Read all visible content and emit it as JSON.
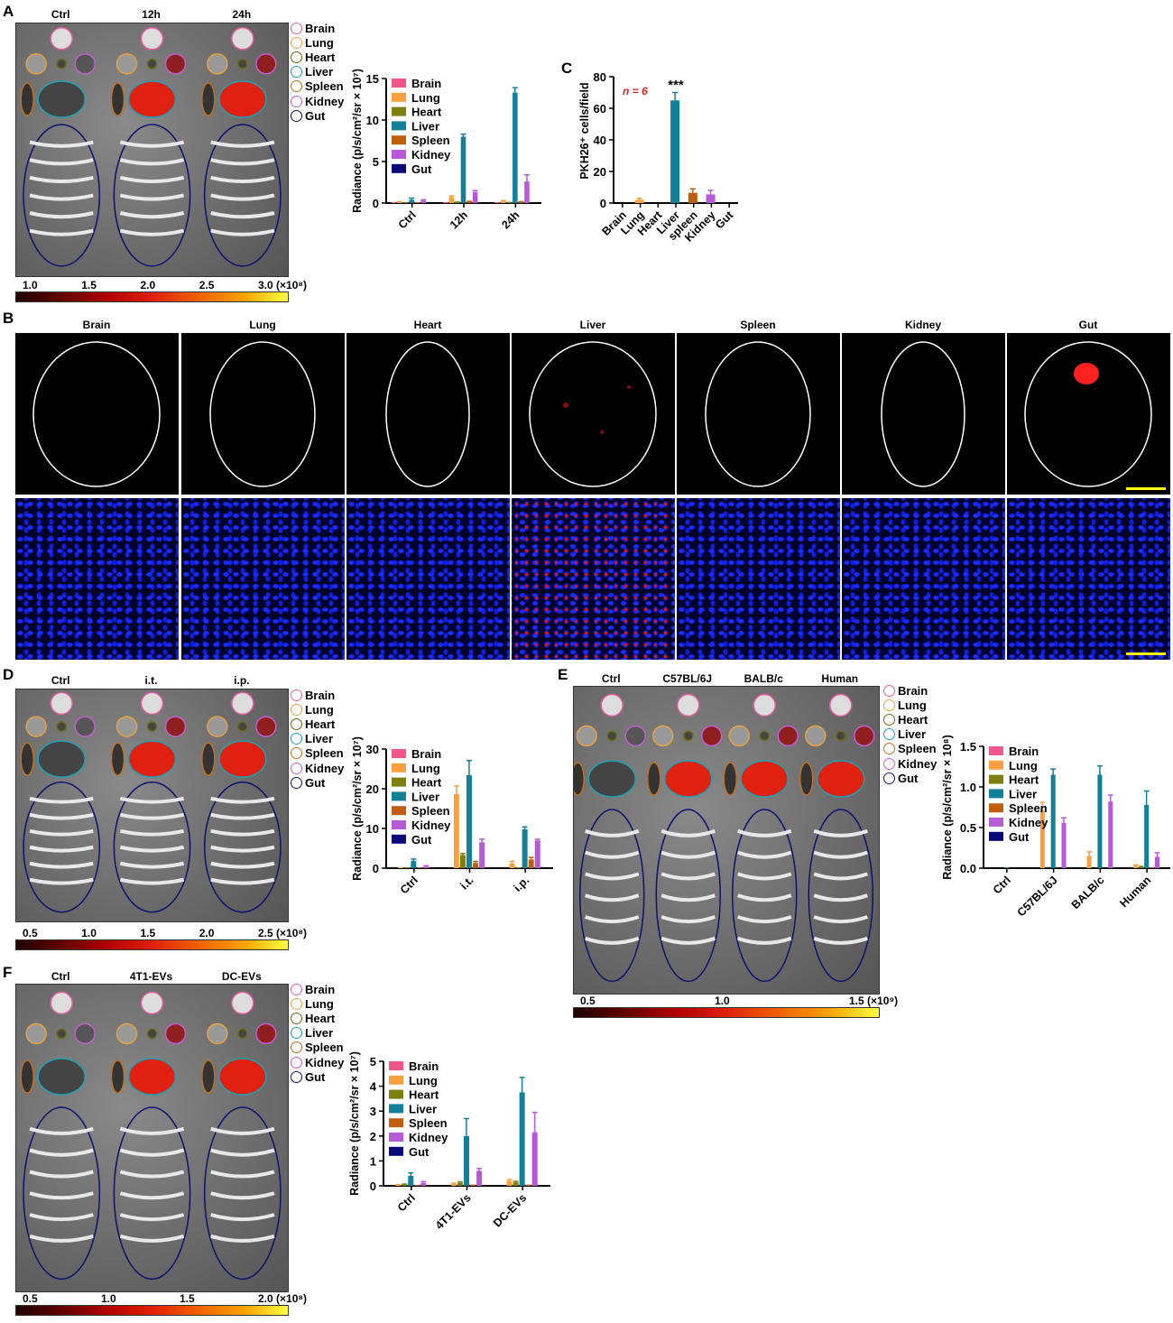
{
  "panels": {
    "A": "A",
    "B": "B",
    "C": "C",
    "D": "D",
    "E": "E",
    "F": "F"
  },
  "organs": [
    "Brain",
    "Lung",
    "Heart",
    "Liver",
    "Spleen",
    "Kidney",
    "Gut"
  ],
  "colors": {
    "Brain": "#f0568a",
    "Lung": "#f7a040",
    "Heart": "#7f7f10",
    "Liver": "#13809a",
    "Spleen": "#c05e10",
    "Kidney": "#b65ad8",
    "Gut": "#0a0a7a"
  },
  "ring_colors": {
    "Brain": "#e060a0",
    "Lung": "#e8a040",
    "Heart": "#6a6a10",
    "Liver": "#20a0b0",
    "Spleen": "#c07020",
    "Kidney": "#c060d0",
    "Gut": "#101070"
  },
  "panelA": {
    "groups": [
      "Ctrl",
      "12h",
      "24h"
    ],
    "colorbar": [
      "1.0",
      "1.5",
      "2.0",
      "2.5",
      "3.0 (×10⁸)"
    ]
  },
  "panelB": {
    "columns": [
      "Brain",
      "Lung",
      "Heart",
      "Liver",
      "Spleen",
      "Kidney",
      "Gut"
    ]
  },
  "panelD": {
    "groups": [
      "Ctrl",
      "i.t.",
      "i.p."
    ],
    "colorbar": [
      "0.5",
      "1.0",
      "1.5",
      "2.0",
      "2.5 (×10⁸)"
    ]
  },
  "panelE": {
    "groups": [
      "Ctrl",
      "C57BL/6J",
      "BALB/c",
      "Human"
    ],
    "colorbar": [
      "0.5",
      "1.0",
      "1.5 (×10⁹)"
    ]
  },
  "panelF": {
    "groups": [
      "Ctrl",
      "4T1-EVs",
      "DC-EVs"
    ],
    "colorbar": [
      "0.5",
      "1.0",
      "1.5",
      "2.0 (×10⁸)"
    ]
  },
  "chart_data": [
    {
      "id": "A",
      "type": "bar",
      "ylabel": "Radiance (p/s/cm²/sr × 10⁷)",
      "ylim": [
        0,
        15
      ],
      "yticks": [
        0,
        5,
        10,
        15
      ],
      "categories": [
        "Ctrl",
        "12h",
        "24h"
      ],
      "legend": "top-left",
      "series": [
        {
          "name": "Brain",
          "values": [
            0.05,
            0.05,
            0.05
          ]
        },
        {
          "name": "Lung",
          "values": [
            0.1,
            0.7,
            0.2
          ],
          "err": [
            0.05,
            0.15,
            0.1
          ]
        },
        {
          "name": "Heart",
          "values": [
            0.1,
            0.2,
            0.15
          ]
        },
        {
          "name": "Liver",
          "values": [
            0.4,
            8.0,
            13.3
          ],
          "err": [
            0.2,
            0.3,
            0.6
          ]
        },
        {
          "name": "Spleen",
          "values": [
            0.1,
            0.3,
            0.25
          ]
        },
        {
          "name": "Kidney",
          "values": [
            0.3,
            1.3,
            2.6
          ],
          "err": [
            0.1,
            0.2,
            0.8
          ]
        },
        {
          "name": "Gut",
          "values": [
            0,
            0,
            0
          ]
        }
      ]
    },
    {
      "id": "C",
      "type": "bar",
      "ylabel": "PKH26⁺ cells/field",
      "ylim": [
        0,
        80
      ],
      "yticks": [
        0,
        20,
        40,
        60,
        80
      ],
      "annotation": "n = 6",
      "significance": "***",
      "categories": [
        "Brain",
        "Lung",
        "Heart",
        "Liver",
        "spleen",
        "Kidney",
        "Gut"
      ],
      "series": [
        {
          "values": [
            0,
            2,
            0,
            65,
            6.5,
            5.5,
            0
          ],
          "err": [
            0,
            1,
            0,
            5,
            2.5,
            2.5,
            0
          ]
        }
      ]
    },
    {
      "id": "D",
      "type": "bar",
      "ylabel": "Radiance (p/s/cm²/sr × 10⁷)",
      "ylim": [
        0,
        30
      ],
      "yticks": [
        0,
        10,
        20,
        30
      ],
      "categories": [
        "Ctrl",
        "i.t.",
        "i.p."
      ],
      "legend": "top-left",
      "series": [
        {
          "name": "Brain",
          "values": [
            0,
            0,
            0
          ]
        },
        {
          "name": "Lung",
          "values": [
            0.2,
            18.7,
            1.2
          ],
          "err": [
            0,
            2,
            0.5
          ]
        },
        {
          "name": "Heart",
          "values": [
            0.2,
            3.3,
            0.2
          ],
          "err": [
            0,
            0.4,
            0
          ]
        },
        {
          "name": "Liver",
          "values": [
            1.8,
            23.4,
            9.8
          ],
          "err": [
            0.5,
            3.7,
            0.6
          ]
        },
        {
          "name": "Spleen",
          "values": [
            0.2,
            1.3,
            2.2
          ],
          "err": [
            0,
            0.4,
            0.5
          ]
        },
        {
          "name": "Kidney",
          "values": [
            0.4,
            6.5,
            7.0
          ],
          "err": [
            0.2,
            0.8,
            0.3
          ]
        },
        {
          "name": "Gut",
          "values": [
            0,
            0,
            0
          ]
        }
      ]
    },
    {
      "id": "E",
      "type": "bar",
      "ylabel": "Radiance (p/s/cm²/sr × 10⁸)",
      "ylim": [
        0,
        1.5
      ],
      "yticks": [
        0.0,
        0.5,
        1.0,
        1.5
      ],
      "categories": [
        "Ctrl",
        "C57BL/6J",
        "BALB/c",
        "Human"
      ],
      "legend": "top-left",
      "series": [
        {
          "name": "Brain",
          "values": [
            0,
            0,
            0,
            0
          ]
        },
        {
          "name": "Lung",
          "values": [
            0,
            0.71,
            0.15,
            0.03
          ],
          "err": [
            0,
            0.1,
            0.05,
            0.01
          ]
        },
        {
          "name": "Heart",
          "values": [
            0,
            0,
            0,
            0.03
          ]
        },
        {
          "name": "Liver",
          "values": [
            0.01,
            1.15,
            1.15,
            0.78
          ],
          "err": [
            0,
            0.07,
            0.11,
            0.17
          ]
        },
        {
          "name": "Spleen",
          "values": [
            0,
            0,
            0,
            0.01
          ]
        },
        {
          "name": "Kidney",
          "values": [
            0,
            0.56,
            0.82,
            0.14
          ],
          "err": [
            0,
            0.06,
            0.08,
            0.05
          ]
        },
        {
          "name": "Gut",
          "values": [
            0,
            0,
            0,
            0
          ]
        }
      ]
    },
    {
      "id": "F",
      "type": "bar",
      "ylabel": "Radiance (p/s/cm²/sr × 10⁷)",
      "ylim": [
        0,
        5
      ],
      "yticks": [
        0,
        1,
        2,
        3,
        4,
        5
      ],
      "categories": [
        "Ctrl",
        "4T1-EVs",
        "DC-EVs"
      ],
      "legend": "top-left",
      "series": [
        {
          "name": "Brain",
          "values": [
            0,
            0,
            0
          ]
        },
        {
          "name": "Lung",
          "values": [
            0.03,
            0.08,
            0.2
          ],
          "err": [
            0.02,
            0.03,
            0.05
          ]
        },
        {
          "name": "Heart",
          "values": [
            0.05,
            0.12,
            0.14
          ],
          "err": [
            0.02,
            0.04,
            0.04
          ]
        },
        {
          "name": "Liver",
          "values": [
            0.4,
            2.0,
            3.75
          ],
          "err": [
            0.12,
            0.7,
            0.6
          ]
        },
        {
          "name": "Spleen",
          "values": [
            0.03,
            0.05,
            0.05
          ]
        },
        {
          "name": "Kidney",
          "values": [
            0.12,
            0.6,
            2.15
          ],
          "err": [
            0.05,
            0.1,
            0.8
          ]
        },
        {
          "name": "Gut",
          "values": [
            0,
            0,
            0
          ]
        }
      ]
    }
  ]
}
